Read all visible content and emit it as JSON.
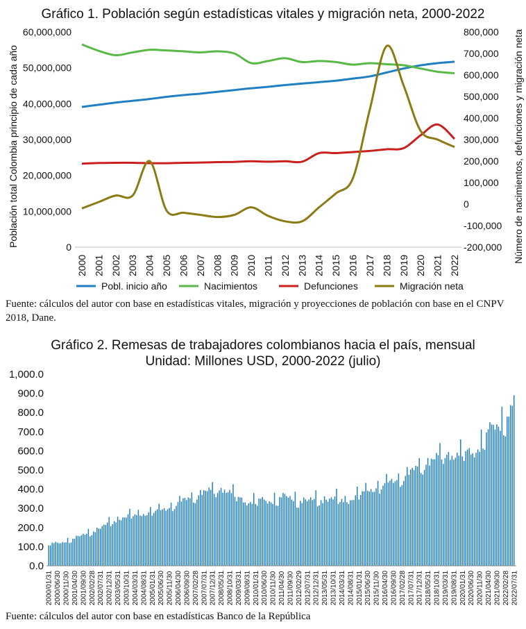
{
  "chart_data": [
    {
      "type": "line",
      "title": "Gráfico 1. Población según estadísticas vitales y migración neta, 2000-2022",
      "ylabel_left": "Población total Colombia principio de cada año",
      "ylabel_right": "Número de nacimientos, defunciones y migración neta",
      "ylim_left": [
        0,
        60000000
      ],
      "ylim_right": [
        -200000,
        800000
      ],
      "yticks_left": [
        "0",
        "10,000,000",
        "20,000,000",
        "30,000,000",
        "40,000,000",
        "50,000,000",
        "60,000,000"
      ],
      "yticks_right": [
        "-200,000",
        "-100,000",
        "0",
        "100,000",
        "200,000",
        "300,000",
        "400,000",
        "500,000",
        "600,000",
        "700,000",
        "800,000"
      ],
      "x": [
        "2000",
        "2001",
        "2002",
        "2003",
        "2004",
        "2005",
        "2006",
        "2007",
        "2008",
        "2009",
        "2010",
        "2011",
        "2012",
        "2013",
        "2014",
        "2015",
        "2016",
        "2017",
        "2018",
        "2019",
        "2020",
        "2021",
        "2022"
      ],
      "legend_placement": "bottom",
      "series": [
        {
          "name": "Pobl. inicio año",
          "axis": "left",
          "color": "#1f7fc1",
          "values": [
            39100000,
            39700000,
            40300000,
            40800000,
            41300000,
            41900000,
            42400000,
            42800000,
            43300000,
            43800000,
            44300000,
            44700000,
            45200000,
            45600000,
            46000000,
            46400000,
            47000000,
            47600000,
            48700000,
            49800000,
            50700000,
            51300000,
            51700000
          ]
        },
        {
          "name": "Nacimientos",
          "axis": "right",
          "color": "#5ab847",
          "values": [
            742000,
            712000,
            692000,
            705000,
            717000,
            714000,
            710000,
            705000,
            710000,
            700000,
            655000,
            665000,
            678000,
            660000,
            665000,
            660000,
            648000,
            655000,
            650000,
            645000,
            630000,
            615000,
            608000
          ]
        },
        {
          "name": "Defunciones",
          "axis": "right",
          "color": "#c9201e",
          "values": [
            188000,
            191000,
            192000,
            192000,
            190000,
            190000,
            192000,
            193000,
            195000,
            196000,
            199000,
            197000,
            199000,
            197000,
            237000,
            237000,
            242000,
            247000,
            255000,
            260000,
            320000,
            370000,
            303000
          ]
        },
        {
          "name": "Migración neta",
          "axis": "right",
          "color": "#8c7a12",
          "values": [
            -20000,
            10000,
            40000,
            40000,
            200000,
            -30000,
            -40000,
            -50000,
            -60000,
            -50000,
            -15000,
            -55000,
            -80000,
            -80000,
            -15000,
            50000,
            120000,
            440000,
            735000,
            550000,
            340000,
            300000,
            265000
          ]
        }
      ]
    },
    {
      "type": "bar",
      "title_line1": "Gráfico 2. Remesas de trabajadores colombianos hacia el país, mensual",
      "title_line2": "Unidad: Millones USD, 2000-2022 (julio)",
      "ylim": [
        0,
        1000
      ],
      "yticks": [
        "0.0",
        "100.0",
        "200.0",
        "300.0",
        "400.0",
        "500.0",
        "600.0",
        "700.0",
        "800.0",
        "900.0",
        "1,000.0"
      ],
      "color": "#1f7fc1",
      "x_tick_labels": [
        "2000/01/31",
        "2000/06/30",
        "2000/11/30",
        "2001/04/30",
        "2001/09/30",
        "2002/02/28",
        "2002/07/31",
        "2002/12/31",
        "2003/05/31",
        "2003/10/31",
        "2004/03/31",
        "2004/08/31",
        "2005/01/31",
        "2005/06/30",
        "2005/11/30",
        "2006/04/30",
        "2006/09/30",
        "2007/02/28",
        "2007/07/31",
        "2007/12/31",
        "2008/05/31",
        "2008/10/31",
        "2009/03/31",
        "2009/08/31",
        "2010/01/31",
        "2010/06/30",
        "2010/11/30",
        "2011/04/30",
        "2011/09/30",
        "2012/02/29",
        "2012/07/31",
        "2012/12/31",
        "2013/05/31",
        "2013/10/31",
        "2014/03/31",
        "2014/08/31",
        "2015/01/31",
        "2015/06/30",
        "2015/11/30",
        "2016/04/30",
        "2016/09/30",
        "2017/02/28",
        "2017/07/31",
        "2017/12/31",
        "2018/05/31",
        "2018/10/31",
        "2019/03/31",
        "2019/08/31",
        "2020/01/31",
        "2020/06/30",
        "2020/11/30",
        "2021/04/30",
        "2021/09/30",
        "2022/02/28",
        "2022/07/31"
      ],
      "annual_anchors": [
        {
          "year": 2000,
          "level": 115
        },
        {
          "year": 2001,
          "level": 150
        },
        {
          "year": 2002,
          "level": 195
        },
        {
          "year": 2003,
          "level": 250
        },
        {
          "year": 2004,
          "level": 270
        },
        {
          "year": 2005,
          "level": 290
        },
        {
          "year": 2006,
          "level": 335
        },
        {
          "year": 2007,
          "level": 380
        },
        {
          "year": 2008,
          "level": 400
        },
        {
          "year": 2009,
          "level": 335
        },
        {
          "year": 2010,
          "level": 335
        },
        {
          "year": 2011,
          "level": 355
        },
        {
          "year": 2012,
          "level": 335
        },
        {
          "year": 2013,
          "level": 350
        },
        {
          "year": 2014,
          "level": 340
        },
        {
          "year": 2015,
          "level": 395
        },
        {
          "year": 2016,
          "level": 430
        },
        {
          "year": 2017,
          "level": 480
        },
        {
          "year": 2018,
          "level": 550
        },
        {
          "year": 2019,
          "level": 580
        },
        {
          "year": 2020,
          "level": 580
        },
        {
          "year": 2021,
          "level": 710
        },
        {
          "year": 2022,
          "level": 800
        }
      ],
      "months": 271,
      "last_value": 890
    }
  ],
  "sources": {
    "fig1": "Fuente: cálculos del autor con base en estadísticas vitales, migración y proyecciones de población con base en el CNPV 2018, Dane.",
    "fig2": "Fuente: cálculos del autor con base en estadísticas Banco de la República"
  }
}
